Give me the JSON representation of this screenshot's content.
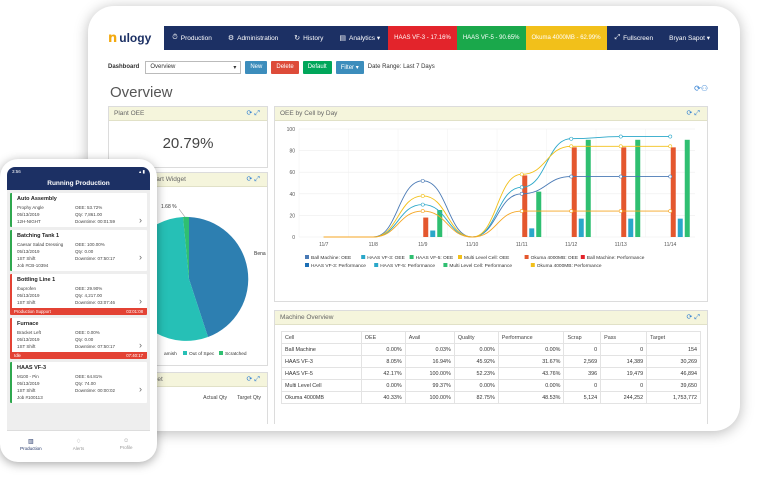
{
  "nav": {
    "logo_mark": "n",
    "logo_text": "ulogy",
    "items": [
      {
        "icon": "⏱",
        "label": "Production"
      },
      {
        "icon": "⚙",
        "label": "Administration"
      },
      {
        "icon": "↻",
        "label": "History"
      },
      {
        "icon": "▤",
        "label": "Analytics ▾"
      }
    ],
    "badges": [
      {
        "label": "HAAS VF-3 - 17.16%",
        "color": "#e3242b"
      },
      {
        "label": "HAAS VF-5 - 90.65%",
        "color": "#1aa84b"
      },
      {
        "label": "Okuma 4000MB - 62.99%",
        "color": "#f2c01a"
      }
    ],
    "fullscreen": "Fullscreen",
    "user": "Bryan Sapot ▾"
  },
  "toolbar": {
    "dashboard_label": "Dashboard",
    "dashboard_value": "Overview",
    "new": "New",
    "delete": "Delete",
    "default": "Default",
    "filter": "Filter ▾",
    "date_range": "Date Range: Last 7 Days"
  },
  "page_title": "Overview",
  "plant_oee": {
    "title": "Plant OEE",
    "value": "20.79%"
  },
  "pie_panel": {
    "title": "Chart Widget",
    "label_pct": "1.68 %",
    "label_side": "Bena",
    "legend": [
      "amish",
      "Out of Spec",
      "Scratched"
    ]
  },
  "target_panel": {
    "title": "arget",
    "col1": "Actual Qty",
    "col2": "Target Qty"
  },
  "oee_chart_title": "OEE by Cell by Day",
  "chart_data": {
    "type": "bar",
    "categories": [
      "11/7",
      "11/8",
      "11/9",
      "11/10",
      "11/11",
      "11/12",
      "11/13",
      "11/14"
    ],
    "ylim": [
      0,
      100
    ],
    "yticks": [
      0,
      20,
      40,
      60,
      80,
      100
    ],
    "bar_series": [
      {
        "name": "Ball Machine: OEE",
        "color": "#e4572e",
        "values": [
          0,
          0,
          18,
          0,
          57,
          83,
          83,
          83
        ]
      },
      {
        "name": "HAAS VF-3: OEE",
        "color": "#2aa7c9",
        "values": [
          0,
          0,
          6,
          0,
          8,
          17,
          17,
          17
        ]
      },
      {
        "name": "HAAS VF-5: OEE",
        "color": "#2fbf71",
        "values": [
          0,
          0,
          25,
          0,
          42,
          90,
          90,
          90
        ]
      }
    ],
    "line_series": [
      {
        "name": "Ball Machine: Performance",
        "color": "#4a7ab5",
        "values": [
          0,
          0,
          52,
          0,
          40,
          56,
          56,
          56
        ]
      },
      {
        "name": "HAAS VF-3: Performance",
        "color": "#2aa7c9",
        "values": [
          0,
          0,
          30,
          0,
          46,
          91,
          93,
          93
        ]
      },
      {
        "name": "Multi Level Cell: Performance",
        "color": "#f2c01a",
        "values": [
          0,
          0,
          38,
          0,
          58,
          84,
          84,
          84
        ]
      },
      {
        "name": "Okuma 4000MB: Performance",
        "color": "#f5a623",
        "values": [
          0,
          0,
          24,
          0,
          24,
          24,
          24,
          24
        ]
      }
    ],
    "legend": [
      {
        "name": "Ball Machine: OEE",
        "color": "#4a7ab5"
      },
      {
        "name": "HAAS VF-3: OEE",
        "color": "#2aa7c9"
      },
      {
        "name": "HAAS VF-5: OEE",
        "color": "#2fbf71"
      },
      {
        "name": "Multi Level Cell: OEE",
        "color": "#f2c01a"
      },
      {
        "name": "Okuma 4000MB: OEE",
        "color": "#e4572e"
      },
      {
        "name": "Ball Machine: Performance",
        "color": "#e3242b"
      },
      {
        "name": "HAAS VF-3: Performance",
        "color": "#1c6fb5"
      },
      {
        "name": "HAAS VF-5: Performance",
        "color": "#2aa7c9"
      },
      {
        "name": "Multi Level Cell: Performance",
        "color": "#2fbf71"
      },
      {
        "name": "Okuma 4000MB: Performance",
        "color": "#f2c01a"
      }
    ]
  },
  "machine_overview": {
    "title": "Machine Overview",
    "columns": [
      "Cell",
      "OEE",
      "Avail",
      "Quality",
      "Performance",
      "Scrap",
      "Pass",
      "Target"
    ],
    "rows": [
      [
        "Ball Machine",
        "0.00%",
        "0.03%",
        "0.00%",
        "0.00%",
        "0",
        "0",
        "154"
      ],
      [
        "HAAS VF-3",
        "8.05%",
        "16.94%",
        "45.92%",
        "31.67%",
        "2,569",
        "14,389",
        "30,269"
      ],
      [
        "HAAS VF-5",
        "42.17%",
        "100.00%",
        "52.23%",
        "43.76%",
        "396",
        "19,479",
        "46,894"
      ],
      [
        "Multi Level Cell",
        "0.00%",
        "99.37%",
        "0.00%",
        "0.00%",
        "0",
        "0",
        "39,650"
      ],
      [
        "Okuma 4000MB",
        "40.33%",
        "100.00%",
        "82.75%",
        "48.53%",
        "5,124",
        "244,252",
        "1,753,772"
      ]
    ]
  },
  "phone": {
    "time": "3:56",
    "signal": "▴ ▮",
    "title": "Running Production",
    "cards": [
      {
        "name": "Auto Assembly",
        "l1": "Prophy Angle",
        "r1": "OEE: 53.72%",
        "l2": "05/13/2019",
        "r2": "Qty: 7,861.00",
        "l3": "12H-NIGHT",
        "r3": "Downtime: 00:01:59",
        "l4": "",
        "accent": "#2fa84f",
        "flag": null
      },
      {
        "name": "Batching Tank 1",
        "l1": "Caesar Salad Dressing",
        "r1": "OEE: 100.00%",
        "l2": "05/13/2019",
        "r2": "Qty: 0.00",
        "l3": "1ST Shift",
        "r3": "Downtime: 07:50:17",
        "l4": "Job #CB-10394",
        "accent": "#2fa84f",
        "flag": null
      },
      {
        "name": "Bottling Line 1",
        "l1": "Ibuprofen",
        "r1": "OEE: 29.90%",
        "l2": "05/13/2019",
        "r2": "Qty: 4,217.00",
        "l3": "1ST Shift",
        "r3": "Downtime: 03:07:46",
        "l4": "",
        "accent": "#e34234",
        "flag": {
          "left": "Production Support",
          "right": "03:01:08"
        }
      },
      {
        "name": "Furnace",
        "l1": "Bracket Left",
        "r1": "OEE: 0.00%",
        "l2": "05/13/2019",
        "r2": "Qty: 0.00",
        "l3": "1ST Shift",
        "r3": "Downtime: 07:50:17",
        "l4": "",
        "accent": "#e34234",
        "flag": {
          "left": "Idle",
          "right": "07:40:17"
        }
      },
      {
        "name": "HAAS VF-3",
        "l1": "M100 - Pin",
        "r1": "OEE: 64.81%",
        "l2": "05/13/2019",
        "r2": "Qty: 74.00",
        "l3": "1ST Shift",
        "r3": "Downtime: 00:00:02",
        "l4": "Job #100113",
        "accent": "#2fa84f",
        "flag": null
      }
    ],
    "tabs": [
      {
        "icon": "▥",
        "label": "Production"
      },
      {
        "icon": "♢",
        "label": "Alerts"
      },
      {
        "icon": "☺",
        "label": "Profile"
      }
    ]
  }
}
